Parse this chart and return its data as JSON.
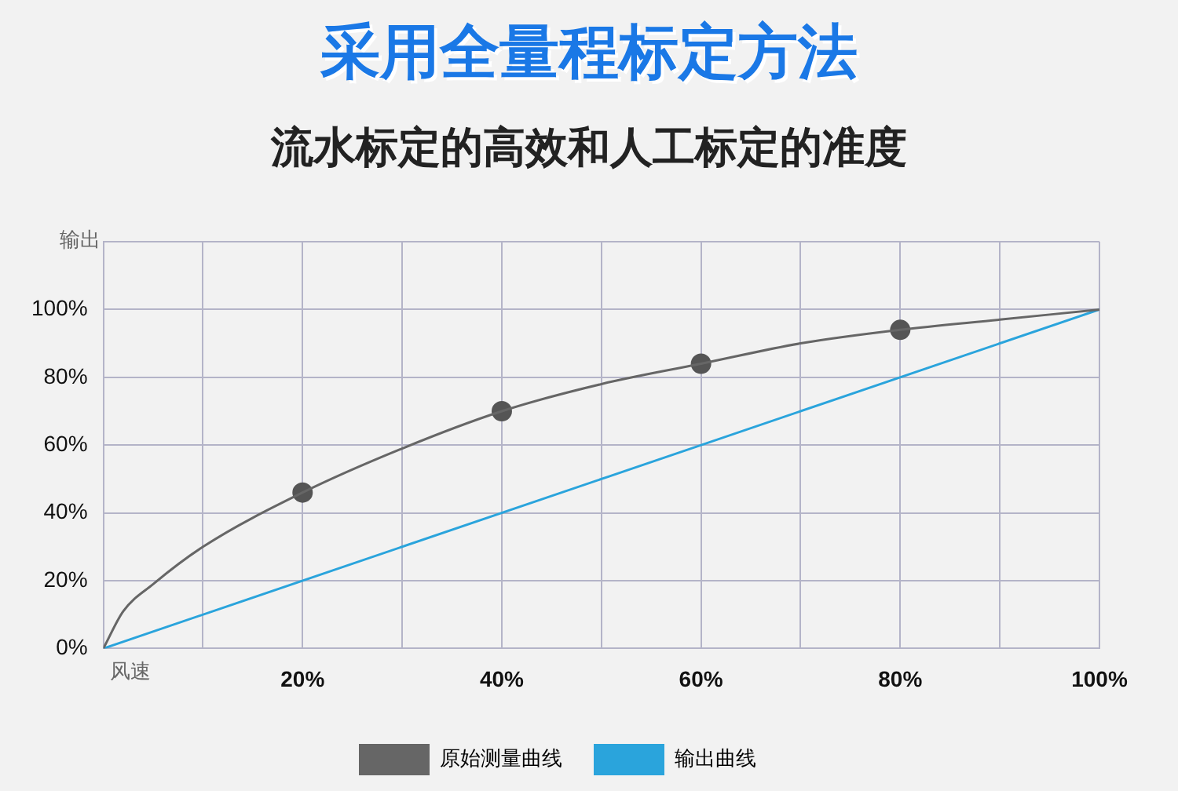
{
  "chart_data": {
    "type": "line",
    "title": "采用全量程标定方法",
    "subtitle": "流水标定的高效和人工标定的准度",
    "xlabel": "风速",
    "ylabel": "输出",
    "xlim": [
      0,
      100
    ],
    "ylim": [
      0,
      120
    ],
    "xticks": [
      {
        "value": 0,
        "label": null
      },
      {
        "value": 10,
        "label": null
      },
      {
        "value": 20,
        "label": "20%"
      },
      {
        "value": 30,
        "label": null
      },
      {
        "value": 40,
        "label": "40%"
      },
      {
        "value": 50,
        "label": null
      },
      {
        "value": 60,
        "label": "60%"
      },
      {
        "value": 70,
        "label": null
      },
      {
        "value": 80,
        "label": "80%"
      },
      {
        "value": 90,
        "label": null
      },
      {
        "value": 100,
        "label": "100%"
      }
    ],
    "yticks": [
      {
        "value": 0,
        "label": "0%"
      },
      {
        "value": 20,
        "label": "20%"
      },
      {
        "value": 40,
        "label": "40%"
      },
      {
        "value": 60,
        "label": "60%"
      },
      {
        "value": 80,
        "label": "80%"
      },
      {
        "value": 100,
        "label": "100%"
      },
      {
        "value": 120,
        "label": null
      }
    ],
    "grid": true,
    "legend": "bottom",
    "series": [
      {
        "name": "原始测量曲线",
        "color": "#666666",
        "marker": "none",
        "x": [
          0,
          2,
          5,
          10,
          20,
          30,
          40,
          50,
          60,
          70,
          80,
          90,
          100
        ],
        "values": [
          0,
          11,
          19,
          30,
          46,
          59,
          70,
          78,
          84,
          90,
          94,
          97,
          100
        ]
      },
      {
        "type": "scatter",
        "color": "#555555",
        "marker": "circle",
        "x": [
          20,
          40,
          60,
          80
        ],
        "values": [
          46,
          70,
          84,
          94
        ]
      },
      {
        "name": "输出曲线",
        "color": "#2aa4dc",
        "marker": "none",
        "x": [
          0,
          100
        ],
        "values": [
          0,
          100
        ]
      }
    ]
  }
}
